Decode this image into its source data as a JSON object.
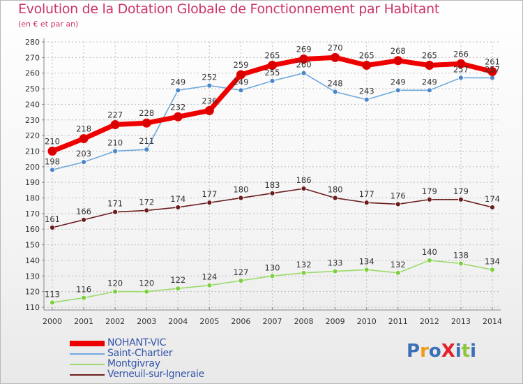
{
  "title": "Evolution de la Dotation Globale de Fonctionnement par Habitant",
  "subtitle": "(en € et par an)",
  "logo": {
    "text": "ProXiti",
    "colors": [
      "#3b6fb6",
      "#f39a1a",
      "#3b6fb6",
      "#e4202b",
      "#3b6fb6",
      "#8dc63f",
      "#3b6fb6"
    ]
  },
  "chart_data": {
    "type": "line",
    "x": [
      2000,
      2001,
      2002,
      2003,
      2004,
      2005,
      2006,
      2007,
      2008,
      2009,
      2010,
      2011,
      2012,
      2013,
      2014
    ],
    "ylim": [
      110,
      280
    ],
    "yticks": [
      110,
      120,
      130,
      140,
      150,
      160,
      170,
      180,
      190,
      200,
      210,
      220,
      230,
      240,
      250,
      260,
      270,
      280
    ],
    "grid": true,
    "legend_position": "bottom-left",
    "series": [
      {
        "name": "Verneuil-sur-Igneraie",
        "color": "#6b1d1d",
        "marker": "#6b1d1d",
        "style": "thin",
        "values": [
          161,
          166,
          171,
          172,
          174,
          177,
          180,
          183,
          186,
          180,
          177,
          176,
          179,
          179,
          174
        ]
      },
      {
        "name": "Montgivray",
        "color": "#9cd96a",
        "marker": "#7ccf3f",
        "style": "thin",
        "values": [
          113,
          116,
          120,
          120,
          122,
          124,
          127,
          130,
          132,
          133,
          134,
          132,
          140,
          138,
          134
        ]
      },
      {
        "name": "Saint-Chartier",
        "color": "#6fa8dc",
        "marker": "#4a86c8",
        "style": "thin",
        "values": [
          198,
          203,
          210,
          211,
          249,
          252,
          249,
          255,
          260,
          248,
          243,
          249,
          249,
          257,
          257
        ]
      },
      {
        "name": "NOHANT-VIC",
        "color": "#ee0000",
        "marker": "#d80000",
        "style": "thick",
        "values": [
          210,
          218,
          227,
          228,
          232,
          236,
          259,
          265,
          269,
          270,
          265,
          268,
          265,
          266,
          261
        ]
      }
    ],
    "legend_order": [
      "NOHANT-VIC",
      "Saint-Chartier",
      "Montgivray",
      "Verneuil-sur-Igneraie"
    ]
  }
}
